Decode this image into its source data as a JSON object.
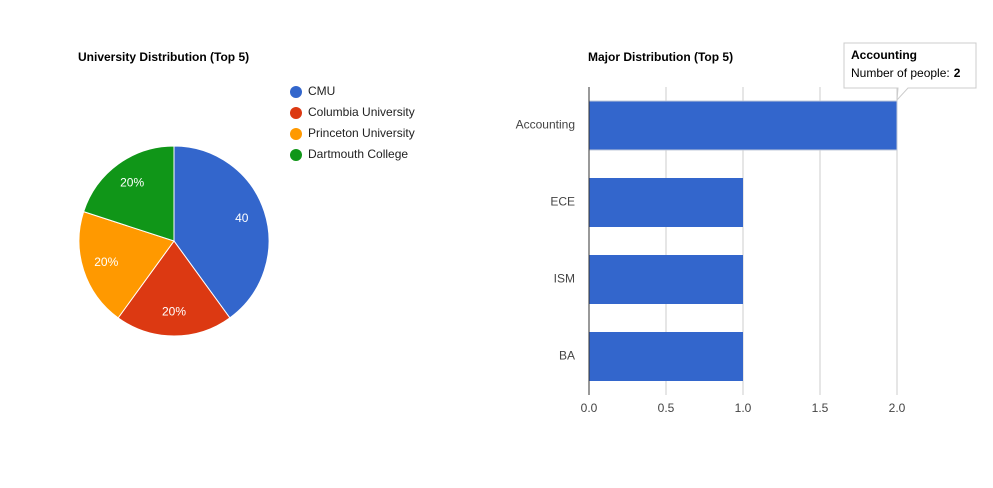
{
  "chart_data": [
    {
      "type": "pie",
      "title": "University Distribution (Top 5)",
      "categories": [
        "CMU",
        "Columbia University",
        "Princeton University",
        "Dartmouth College"
      ],
      "values": [
        40,
        20,
        20,
        20
      ],
      "value_labels": [
        "40",
        "20%",
        "20%",
        "20%"
      ],
      "colors": [
        "#3366cc",
        "#dc3912",
        "#ff9900",
        "#109618"
      ],
      "legend": "right"
    },
    {
      "type": "hbar",
      "title": "Major Distribution (Top 5)",
      "categories": [
        "Accounting",
        "ECE",
        "ISM",
        "BA"
      ],
      "values": [
        2,
        1,
        1,
        1
      ],
      "color": "#3366cc",
      "xlim": [
        0,
        2
      ],
      "xticks": [
        {
          "value": 0,
          "label": "0.0"
        },
        {
          "value": 0.5,
          "label": "0.5"
        },
        {
          "value": 1,
          "label": "1.0"
        },
        {
          "value": 1.5,
          "label": "1.5"
        },
        {
          "value": 2,
          "label": "2.0"
        }
      ],
      "grid": true,
      "tooltip": {
        "label": "Number of people:"
      }
    }
  ]
}
